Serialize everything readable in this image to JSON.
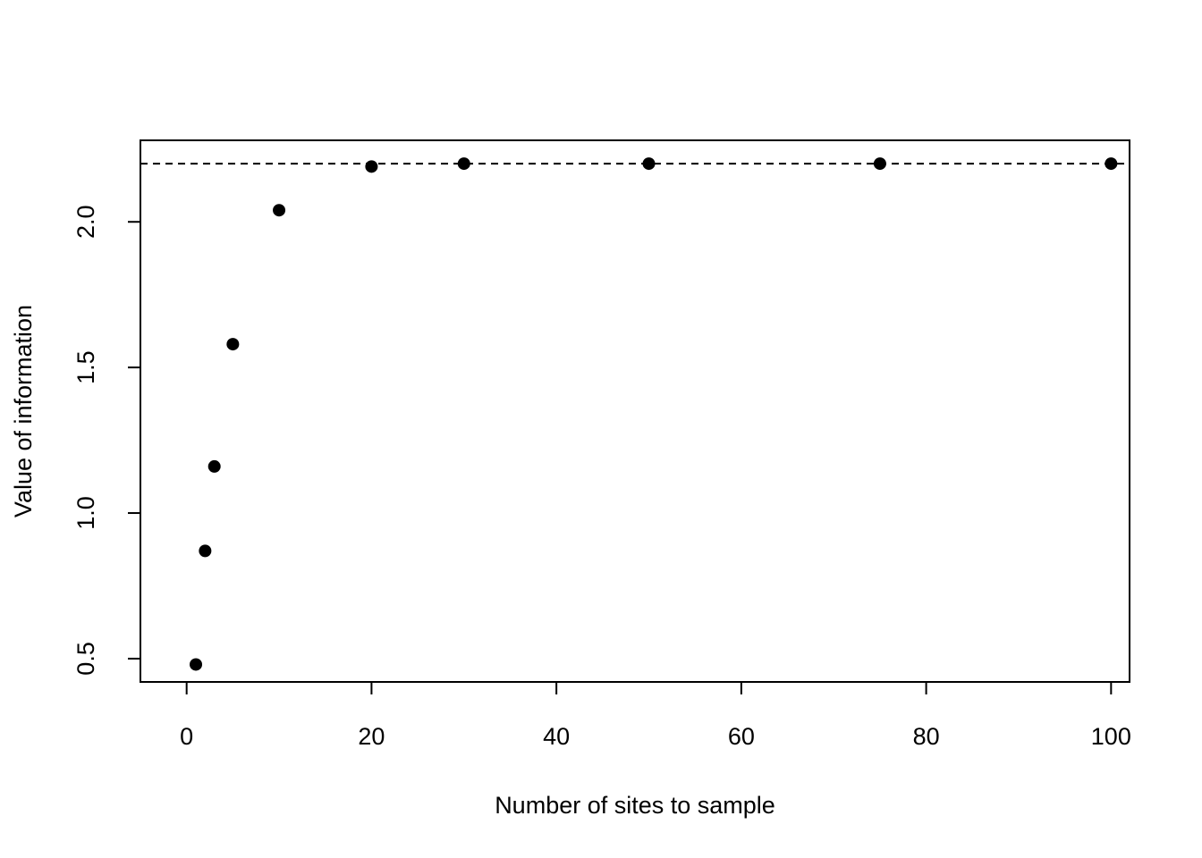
{
  "chart_data": {
    "type": "scatter",
    "title": "",
    "xlabel": "Number of sites to sample",
    "ylabel": "Value of information",
    "xlim": [
      -5,
      102
    ],
    "ylim": [
      0.42,
      2.28
    ],
    "x_ticks": [
      0,
      20,
      40,
      60,
      80,
      100
    ],
    "x_tick_labels": [
      "0",
      "20",
      "40",
      "60",
      "80",
      "100"
    ],
    "y_ticks": [
      0.5,
      1.0,
      1.5,
      2.0
    ],
    "y_tick_labels": [
      "0.5",
      "1.0",
      "1.5",
      "2.0"
    ],
    "grid": false,
    "points": [
      {
        "x": 1,
        "y": 0.48
      },
      {
        "x": 2,
        "y": 0.87
      },
      {
        "x": 3,
        "y": 1.16
      },
      {
        "x": 5,
        "y": 1.58
      },
      {
        "x": 10,
        "y": 2.04
      },
      {
        "x": 20,
        "y": 2.19
      },
      {
        "x": 30,
        "y": 2.2
      },
      {
        "x": 50,
        "y": 2.2
      },
      {
        "x": 75,
        "y": 2.2
      },
      {
        "x": 100,
        "y": 2.2
      }
    ],
    "reference_line": {
      "y": 2.2,
      "style": "dashed"
    },
    "colors": {
      "points": "#000000",
      "axes": "#000000",
      "background": "#ffffff"
    }
  }
}
